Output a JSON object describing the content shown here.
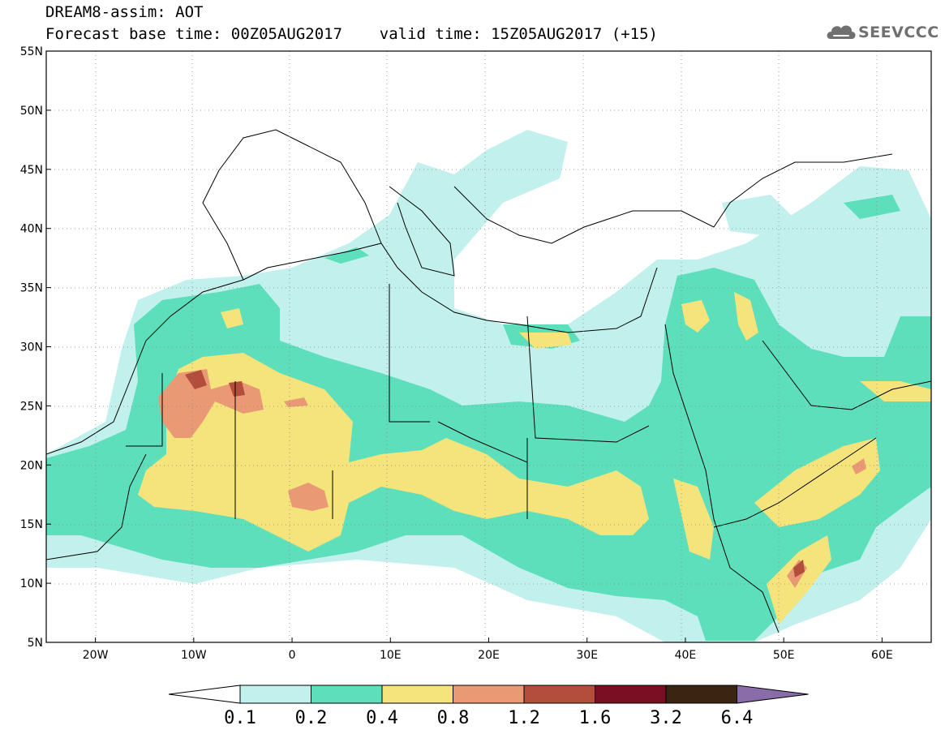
{
  "header": {
    "line1": "DREAM8-assim: AOT",
    "line2": "Forecast base time: 00Z05AUG2017    valid time: 15Z05AUG2017 (+15)"
  },
  "logo": {
    "text": "SEEVCCC",
    "icon": "cloud-icon"
  },
  "map": {
    "projection": "lat-lon",
    "lon_range": [
      -25,
      65
    ],
    "lat_range": [
      5,
      55
    ],
    "lat_ticks": [
      "55N",
      "50N",
      "45N",
      "40N",
      "35N",
      "30N",
      "25N",
      "20N",
      "15N",
      "10N",
      "5N"
    ],
    "lon_ticks": [
      "20W",
      "10W",
      "0",
      "10E",
      "20E",
      "30E",
      "40E",
      "50E",
      "60E"
    ],
    "grid": "dotted",
    "background": "#ffffff"
  },
  "colorbar": {
    "labels": [
      "0.1",
      "0.2",
      "0.4",
      "0.8",
      "1.2",
      "1.6",
      "3.2",
      "6.4"
    ],
    "colors": [
      "#ffffff",
      "#c2f0ec",
      "#5ddfbb",
      "#f5e37c",
      "#e99a74",
      "#b34e3c",
      "#7a0f24",
      "#3b2412",
      "#8a6ca8"
    ]
  }
}
